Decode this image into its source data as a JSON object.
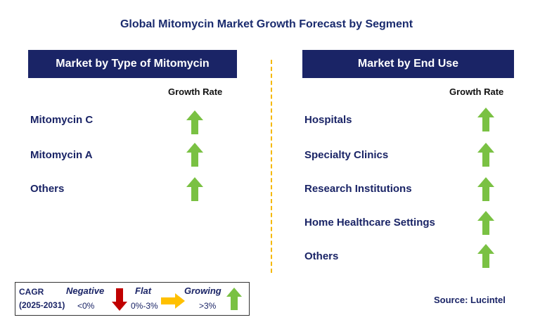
{
  "title": "Global Mitomycin Market Growth Forecast by Segment",
  "left_panel": {
    "header": "Market by Type of Mitomycin",
    "growth_rate_label": "Growth Rate",
    "items": [
      {
        "label": "Mitomycin C",
        "trend": "growing"
      },
      {
        "label": "Mitomycin A",
        "trend": "growing"
      },
      {
        "label": "Others",
        "trend": "growing"
      }
    ]
  },
  "right_panel": {
    "header": "Market by End Use",
    "growth_rate_label": "Growth Rate",
    "items": [
      {
        "label": "Hospitals",
        "trend": "growing"
      },
      {
        "label": "Specialty Clinics",
        "trend": "growing"
      },
      {
        "label": "Research Institutions",
        "trend": "growing"
      },
      {
        "label": "Home Healthcare Settings",
        "trend": "growing"
      },
      {
        "label": "Others",
        "trend": "growing"
      }
    ]
  },
  "legend": {
    "cagr_label": "CAGR",
    "period": "(2025-2031)",
    "negative_label": "Negative",
    "negative_range": "<0%",
    "flat_label": "Flat",
    "flat_range": "0%-3%",
    "growing_label": "Growing",
    "growing_range": ">3%"
  },
  "source": "Source: Lucintel",
  "colors": {
    "header_bg": "#1a2466",
    "text": "#1a2466",
    "growing_arrow": "#7ac143",
    "negative_arrow": "#c00000",
    "flat_arrow": "#ffc000",
    "divider": "#f5b800"
  },
  "icons": {
    "growing": "green-up-arrow-icon",
    "negative": "red-down-arrow-icon",
    "flat": "yellow-right-arrow-icon"
  }
}
